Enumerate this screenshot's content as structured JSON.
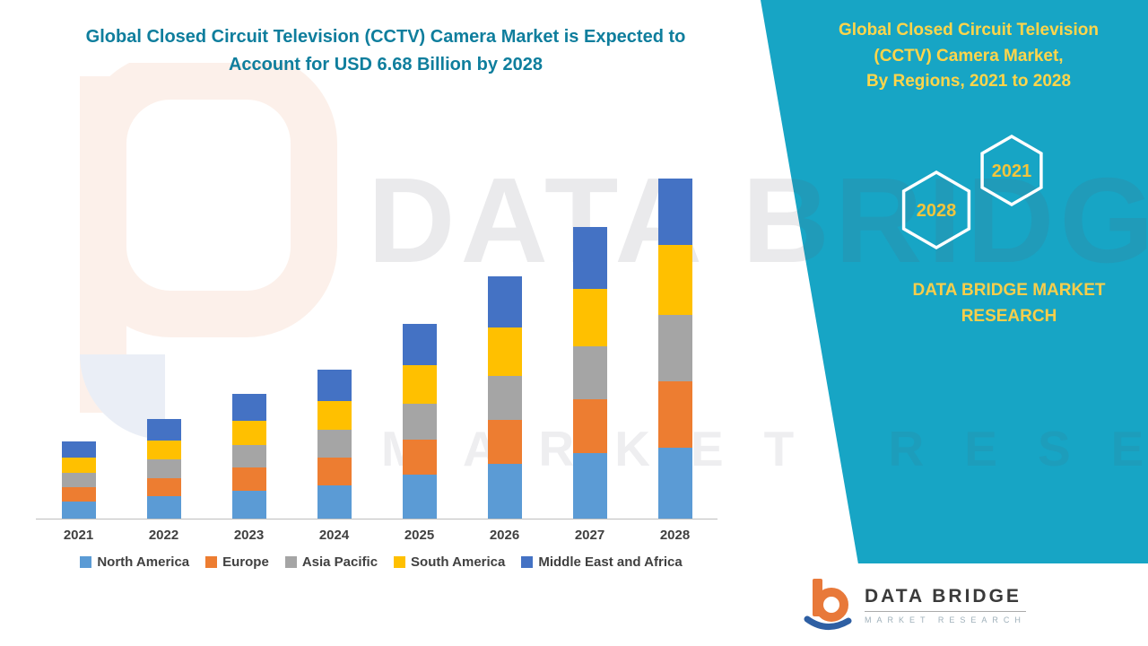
{
  "colors": {
    "teal_panel": "#17A5C5",
    "left_title": "#0F7E9D",
    "gold_title": "#FFD54A",
    "hex_year_gold": "#F2C53D",
    "axis_label": "#404040"
  },
  "left": {
    "title": "Global Closed Circuit Television (CCTV) Camera Market is Expected to\nAccount for USD 6.68 Billion by 2028"
  },
  "right_panel": {
    "title": "Global Closed Circuit Television\n(CCTV) Camera Market,\nBy Regions, 2021 to 2028",
    "hexagon_left_year": "2028",
    "hexagon_right_year": "2021",
    "brand_text": "DATA BRIDGE MARKET\nRESEARCH"
  },
  "watermark": {
    "line1": "DATA BRIDGE",
    "line2": "MARKET RESEARCH"
  },
  "logo": {
    "name": "DATA BRIDGE",
    "subtitle": "MARKET RESEARCH"
  },
  "chart_data": {
    "type": "bar",
    "stacked": true,
    "title": "Global Closed Circuit Television (CCTV) Camera Market is Expected to Account for USD 6.68 Billion by 2028",
    "unit": "USD Billion",
    "categories": [
      "2021",
      "2022",
      "2023",
      "2024",
      "2025",
      "2026",
      "2027",
      "2028"
    ],
    "series": [
      {
        "name": "North America",
        "color": "#5B9BD5",
        "values": [
          0.34,
          0.44,
          0.55,
          0.66,
          0.86,
          1.07,
          1.29,
          1.4
        ]
      },
      {
        "name": "Europe",
        "color": "#ED7D31",
        "values": [
          0.28,
          0.36,
          0.45,
          0.54,
          0.7,
          0.87,
          1.05,
          1.3
        ]
      },
      {
        "name": "Asia Pacific",
        "color": "#A5A5A5",
        "values": [
          0.28,
          0.36,
          0.45,
          0.54,
          0.7,
          0.87,
          1.05,
          1.3
        ]
      },
      {
        "name": "South America",
        "color": "#FFC000",
        "values": [
          0.3,
          0.38,
          0.48,
          0.58,
          0.76,
          0.94,
          1.13,
          1.38
        ]
      },
      {
        "name": "Middle East and Africa",
        "color": "#4472C4",
        "values": [
          0.32,
          0.42,
          0.52,
          0.61,
          0.81,
          1.01,
          1.21,
          1.3
        ]
      }
    ],
    "totals": [
      1.52,
      1.96,
      2.45,
      2.93,
      3.83,
      4.76,
      5.73,
      6.68
    ],
    "ylim": [
      0,
      6.7
    ],
    "y_axis_visible": false,
    "grid": false,
    "legend_position": "bottom"
  }
}
